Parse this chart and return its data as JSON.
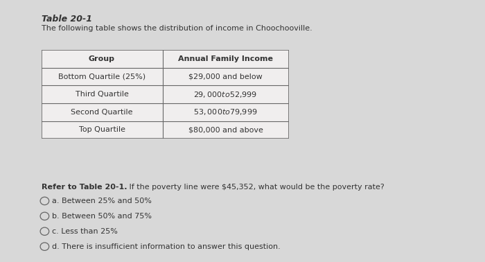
{
  "title": "Table 20-1",
  "subtitle": "The following table shows the distribution of income in Choochooville.",
  "table_headers": [
    "Group",
    "Annual Family Income"
  ],
  "table_rows": [
    [
      "Bottom Quartile (25%)",
      "$29,000 and below"
    ],
    [
      "Third Quartile",
      "$29,000 to $52,999"
    ],
    [
      "Second Quartile",
      "$53,000 to $79,999"
    ],
    [
      "Top Quartile",
      "$80,000 and above"
    ]
  ],
  "question_bold": "Refer to Table 20-1.",
  "question_rest": " If the poverty line were $45,352, what would be the poverty rate?",
  "options": [
    "a. Between 25% and 50%",
    "b. Between 50% and 75%",
    "c. Less than 25%",
    "d. There is insufficient information to answer this question."
  ],
  "bg_color": "#d8d8d8",
  "table_bg": "#f0eeee",
  "text_color": "#333333",
  "border_color": "#666666",
  "title_fontsize": 9,
  "subtitle_fontsize": 8,
  "table_fontsize": 8,
  "question_fontsize": 8,
  "option_fontsize": 8
}
